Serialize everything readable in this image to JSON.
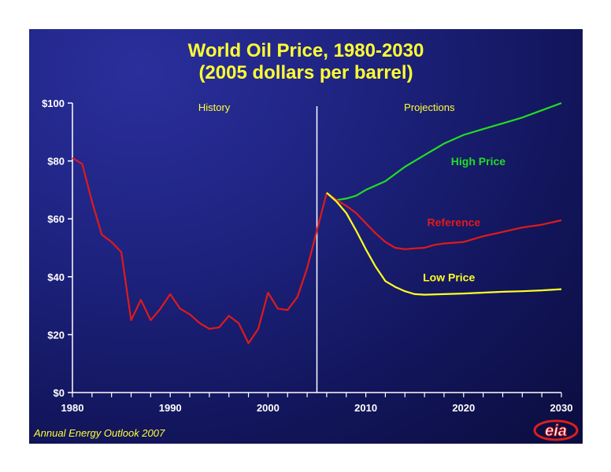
{
  "chart_data": {
    "type": "line",
    "title_line1": "World Oil Price, 1980-2030",
    "title_line2": "(2005 dollars per barrel)",
    "xlim": [
      1980,
      2030
    ],
    "ylim": [
      0,
      100
    ],
    "x_ticks": [
      "1980",
      "1990",
      "2000",
      "2010",
      "2020",
      "2030"
    ],
    "y_ticks": [
      "$0",
      "$20",
      "$40",
      "$60",
      "$80",
      "$100"
    ],
    "divider_year": 2005,
    "annotations": {
      "history": "History",
      "projections": "Projections"
    },
    "series": [
      {
        "name": "History",
        "color": "#e01a1a",
        "x": [
          1980,
          1981,
          1982,
          1983,
          1984,
          1985,
          1986,
          1987,
          1988,
          1989,
          1990,
          1991,
          1992,
          1993,
          1994,
          1995,
          1996,
          1997,
          1998,
          1999,
          2000,
          2001,
          2002,
          2003,
          2004,
          2005,
          2006
        ],
        "values": [
          81,
          79,
          66,
          54.5,
          52,
          48.5,
          25,
          32,
          25,
          29,
          34,
          29,
          27,
          24,
          22,
          22.5,
          26.5,
          24,
          17,
          22,
          34.5,
          29,
          28.5,
          33,
          43,
          56,
          69
        ]
      },
      {
        "name": "High Price",
        "color": "#22dd22",
        "x": [
          2006,
          2007,
          2008,
          2009,
          2010,
          2012,
          2014,
          2016,
          2018,
          2020,
          2022,
          2024,
          2026,
          2028,
          2030
        ],
        "values": [
          69,
          66.5,
          67,
          68,
          70,
          73,
          78,
          82,
          86,
          89,
          91,
          93,
          95,
          97.5,
          100
        ]
      },
      {
        "name": "Reference",
        "color": "#e01a1a",
        "x": [
          2006,
          2007,
          2008,
          2009,
          2010,
          2011,
          2012,
          2013,
          2014,
          2015,
          2016,
          2017,
          2018,
          2020,
          2022,
          2024,
          2026,
          2028,
          2030
        ],
        "values": [
          69,
          66.5,
          64.5,
          62,
          58.5,
          55,
          52,
          50,
          49.5,
          49.8,
          50,
          51,
          51.5,
          52,
          54,
          55.5,
          57,
          58,
          59.5
        ]
      },
      {
        "name": "Low Price",
        "color": "#ffff22",
        "x": [
          2006,
          2007,
          2008,
          2009,
          2010,
          2011,
          2012,
          2013,
          2014,
          2015,
          2016,
          2018,
          2020,
          2022,
          2024,
          2026,
          2028,
          2030
        ],
        "values": [
          69,
          66,
          62,
          56,
          49.5,
          43.5,
          38.5,
          36.5,
          35,
          34,
          33.8,
          34,
          34.2,
          34.5,
          34.8,
          35,
          35.3,
          35.7
        ]
      }
    ],
    "series_labels": [
      {
        "text": "High Price",
        "color": "#22dd22"
      },
      {
        "text": "Reference",
        "color": "#e01a1a"
      },
      {
        "text": "Low Price",
        "color": "#ffff22"
      }
    ]
  },
  "footer": "Annual Energy Outlook 2007",
  "logo_text": "eia"
}
